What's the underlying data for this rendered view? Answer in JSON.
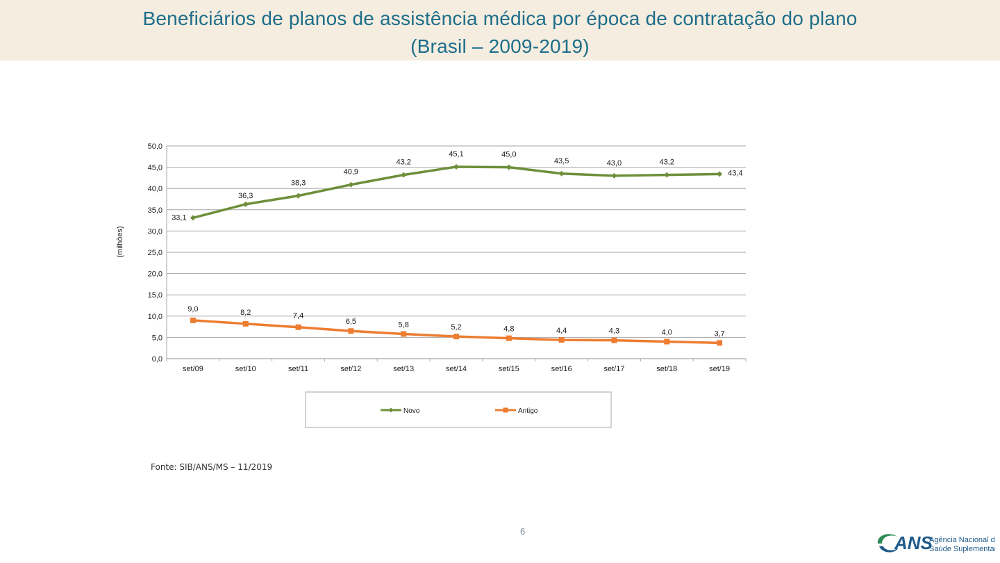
{
  "header": {
    "title_line1": "Beneficiários de planos de assistência médica por época de contratação do plano",
    "title_line2": "(Brasil – 2009-2019)"
  },
  "footer": {
    "source": "Fonte: SIB/ANS/MS – 11/2019",
    "page_number": "6",
    "logo_mark": "ANS",
    "logo_line1": "Agência Nacional de",
    "logo_line2": "Saúde Suplementar"
  },
  "colors": {
    "title": "#1e6e8a",
    "novo": "#6e8f3a",
    "antigo": "#ed7d31",
    "grid": "#a6a6a6",
    "logo_green": "#2e8b57",
    "logo_blue": "#1e5a8a"
  },
  "chart_data": {
    "type": "line",
    "title": "",
    "xlabel": "",
    "ylabel": "(milhões)",
    "ylim": [
      0,
      50
    ],
    "ytick_step": 5,
    "ytick_labels": [
      "0,0",
      "5,0",
      "10,0",
      "15,0",
      "20,0",
      "25,0",
      "30,0",
      "35,0",
      "40,0",
      "45,0",
      "50,0"
    ],
    "categories": [
      "set/09",
      "set/10",
      "set/11",
      "set/12",
      "set/13",
      "set/14",
      "set/15",
      "set/16",
      "set/17",
      "set/18",
      "set/19"
    ],
    "legend_position": "bottom",
    "series": [
      {
        "name": "Novo",
        "marker": "diamond",
        "values": [
          33.1,
          36.3,
          38.3,
          40.9,
          43.2,
          45.1,
          45.0,
          43.5,
          43.0,
          43.2,
          43.4
        ],
        "labels": [
          "33,1",
          "36,3",
          "38,3",
          "40,9",
          "43,2",
          "45,1",
          "45,0",
          "43,5",
          "43,0",
          "43,2",
          "43,4"
        ]
      },
      {
        "name": "Antigo",
        "marker": "square",
        "values": [
          9.0,
          8.2,
          7.4,
          6.5,
          5.8,
          5.2,
          4.8,
          4.4,
          4.3,
          4.0,
          3.7
        ],
        "labels": [
          "9,0",
          "8,2",
          "7,4",
          "6,5",
          "5,8",
          "5,2",
          "4,8",
          "4,4",
          "4,3",
          "4,0",
          "3,7"
        ]
      }
    ]
  }
}
